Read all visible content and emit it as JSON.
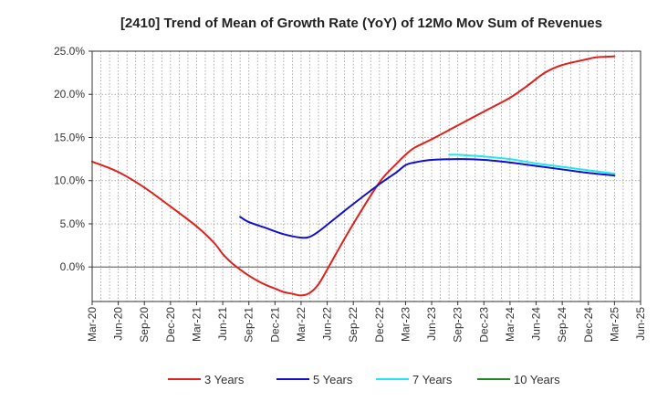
{
  "chart_data": {
    "type": "line",
    "title": "[2410]  Trend of Mean of Growth Rate (YoY) of 12Mo Mov Sum of Revenues",
    "xlabel": "",
    "ylabel": "",
    "ylim": [
      -4,
      25
    ],
    "yticks": [
      0,
      5,
      10,
      15,
      20,
      25
    ],
    "ytick_labels": [
      "0.0%",
      "5.0%",
      "10.0%",
      "15.0%",
      "20.0%",
      "25.0%"
    ],
    "xticks": [
      {
        "label": "Mar-20",
        "index": 0
      },
      {
        "label": "Jun-20",
        "index": 3
      },
      {
        "label": "Sep-20",
        "index": 6
      },
      {
        "label": "Dec-20",
        "index": 9
      },
      {
        "label": "Mar-21",
        "index": 12
      },
      {
        "label": "Jun-21",
        "index": 15
      },
      {
        "label": "Sep-21",
        "index": 18
      },
      {
        "label": "Dec-21",
        "index": 21
      },
      {
        "label": "Mar-22",
        "index": 24
      },
      {
        "label": "Jun-22",
        "index": 27
      },
      {
        "label": "Sep-22",
        "index": 30
      },
      {
        "label": "Dec-22",
        "index": 33
      },
      {
        "label": "Mar-23",
        "index": 36
      },
      {
        "label": "Jun-23",
        "index": 39
      },
      {
        "label": "Sep-23",
        "index": 42
      },
      {
        "label": "Dec-23",
        "index": 45
      },
      {
        "label": "Mar-24",
        "index": 48
      },
      {
        "label": "Jun-24",
        "index": 51
      },
      {
        "label": "Sep-24",
        "index": 54
      },
      {
        "label": "Dec-24",
        "index": 57
      },
      {
        "label": "Mar-25",
        "index": 60
      },
      {
        "label": "Jun-25",
        "index": 63
      }
    ],
    "x_count": 63,
    "grid": true,
    "legend_position": "bottom",
    "series": [
      {
        "name": "3 Years",
        "color": "#e0201b",
        "points": [
          [
            0,
            12.2
          ],
          [
            3,
            11.0
          ],
          [
            6,
            9.2
          ],
          [
            9,
            7.0
          ],
          [
            12,
            4.7
          ],
          [
            14,
            2.8
          ],
          [
            15,
            1.5
          ],
          [
            16,
            0.5
          ],
          [
            17,
            -0.3
          ],
          [
            18,
            -1.0
          ],
          [
            19,
            -1.6
          ],
          [
            20,
            -2.1
          ],
          [
            21,
            -2.5
          ],
          [
            22,
            -2.9
          ],
          [
            23,
            -3.1
          ],
          [
            24,
            -3.3
          ],
          [
            25,
            -3.0
          ],
          [
            26,
            -2.0
          ],
          [
            27,
            -0.3
          ],
          [
            28,
            1.5
          ],
          [
            30,
            5.0
          ],
          [
            33,
            9.8
          ],
          [
            35,
            12.0
          ],
          [
            36,
            13.0
          ],
          [
            37,
            13.8
          ],
          [
            39,
            14.8
          ],
          [
            42,
            16.4
          ],
          [
            45,
            18.0
          ],
          [
            48,
            19.6
          ],
          [
            50,
            21.0
          ],
          [
            52,
            22.5
          ],
          [
            54,
            23.4
          ],
          [
            57,
            24.1
          ],
          [
            58,
            24.3
          ],
          [
            60,
            24.4
          ]
        ]
      },
      {
        "name": "5 Years",
        "color": "#1010cc",
        "points": [
          [
            17,
            5.8
          ],
          [
            18,
            5.2
          ],
          [
            20,
            4.5
          ],
          [
            22,
            3.8
          ],
          [
            24,
            3.4
          ],
          [
            25,
            3.5
          ],
          [
            26,
            4.1
          ],
          [
            28,
            5.7
          ],
          [
            30,
            7.3
          ],
          [
            33,
            9.6
          ],
          [
            35,
            11.0
          ],
          [
            36,
            11.8
          ],
          [
            37,
            12.1
          ],
          [
            39,
            12.4
          ],
          [
            42,
            12.5
          ],
          [
            45,
            12.4
          ],
          [
            48,
            12.1
          ],
          [
            51,
            11.7
          ],
          [
            54,
            11.3
          ],
          [
            57,
            10.9
          ],
          [
            60,
            10.6
          ]
        ]
      },
      {
        "name": "7 Years",
        "color": "#22e5f2",
        "points": [
          [
            41,
            13.0
          ],
          [
            42,
            13.0
          ],
          [
            45,
            12.8
          ],
          [
            48,
            12.5
          ],
          [
            51,
            12.0
          ],
          [
            54,
            11.6
          ],
          [
            57,
            11.2
          ],
          [
            60,
            10.8
          ]
        ]
      },
      {
        "name": "10 Years",
        "color": "#1e8a1e",
        "points": []
      }
    ]
  }
}
